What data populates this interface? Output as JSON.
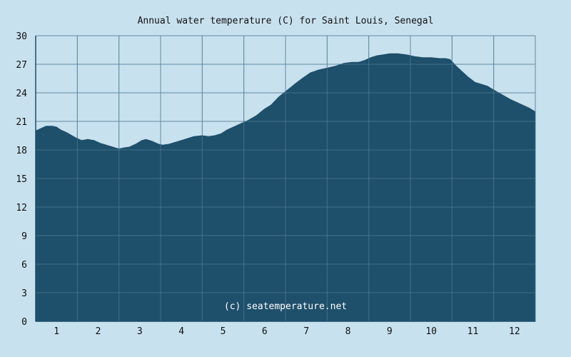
{
  "chart_data": {
    "type": "area",
    "title": "Annual water temperature (C) for Saint Louis, Senegal",
    "xlabel": "",
    "ylabel": "",
    "ylim": [
      0,
      30
    ],
    "xlim": [
      0.5,
      12.5
    ],
    "y_ticks": [
      "0",
      "3",
      "6",
      "9",
      "12",
      "15",
      "18",
      "21",
      "24",
      "27",
      "30"
    ],
    "x_ticks": [
      "1",
      "2",
      "3",
      "4",
      "5",
      "6",
      "7",
      "8",
      "9",
      "10",
      "11",
      "12"
    ],
    "grid": true,
    "watermark": "(c) seatemperature.net",
    "colors": {
      "background": "#c8e1ee",
      "area": "#1e4f6b",
      "grid": "#5f8aa2",
      "axis": "#1e4f6b"
    },
    "series": [
      {
        "x": [
          0.5,
          0.6,
          0.75,
          0.9,
          1.0,
          1.1,
          1.25,
          1.45,
          1.6,
          1.75,
          1.9,
          2.05,
          2.2,
          2.35,
          2.5,
          2.6,
          2.75,
          2.9,
          3.05,
          3.15,
          3.3,
          3.45,
          3.55,
          3.7,
          3.85,
          4.0,
          4.15,
          4.3,
          4.5,
          4.65,
          4.8,
          4.95,
          5.1,
          5.25,
          5.4,
          5.6,
          5.8,
          6.0,
          6.15,
          6.35,
          6.55,
          6.75,
          6.9,
          7.1,
          7.3,
          7.5,
          7.7,
          7.9,
          8.1,
          8.25,
          8.4,
          8.55,
          8.7,
          8.85,
          9.0,
          9.2,
          9.4,
          9.6,
          9.8,
          10.0,
          10.2,
          10.35,
          10.45,
          10.6,
          10.75,
          10.9,
          11.05,
          11.2,
          11.35,
          11.5,
          11.7,
          11.9,
          12.05,
          12.2,
          12.35,
          12.5
        ],
        "y": [
          20.0,
          20.2,
          20.5,
          20.5,
          20.4,
          20.1,
          19.8,
          19.3,
          19.0,
          19.1,
          19.0,
          18.7,
          18.5,
          18.3,
          18.1,
          18.2,
          18.3,
          18.6,
          19.0,
          19.1,
          18.9,
          18.6,
          18.5,
          18.6,
          18.8,
          19.0,
          19.2,
          19.4,
          19.5,
          19.4,
          19.5,
          19.7,
          20.1,
          20.4,
          20.7,
          21.1,
          21.6,
          22.3,
          22.7,
          23.6,
          24.3,
          25.0,
          25.5,
          26.1,
          26.4,
          26.6,
          26.8,
          27.1,
          27.2,
          27.2,
          27.4,
          27.7,
          27.9,
          28.0,
          28.1,
          28.1,
          28.0,
          27.8,
          27.7,
          27.7,
          27.6,
          27.6,
          27.5,
          26.8,
          26.2,
          25.6,
          25.1,
          24.9,
          24.7,
          24.3,
          23.8,
          23.3,
          23.0,
          22.7,
          22.4,
          22.0
        ]
      }
    ]
  }
}
